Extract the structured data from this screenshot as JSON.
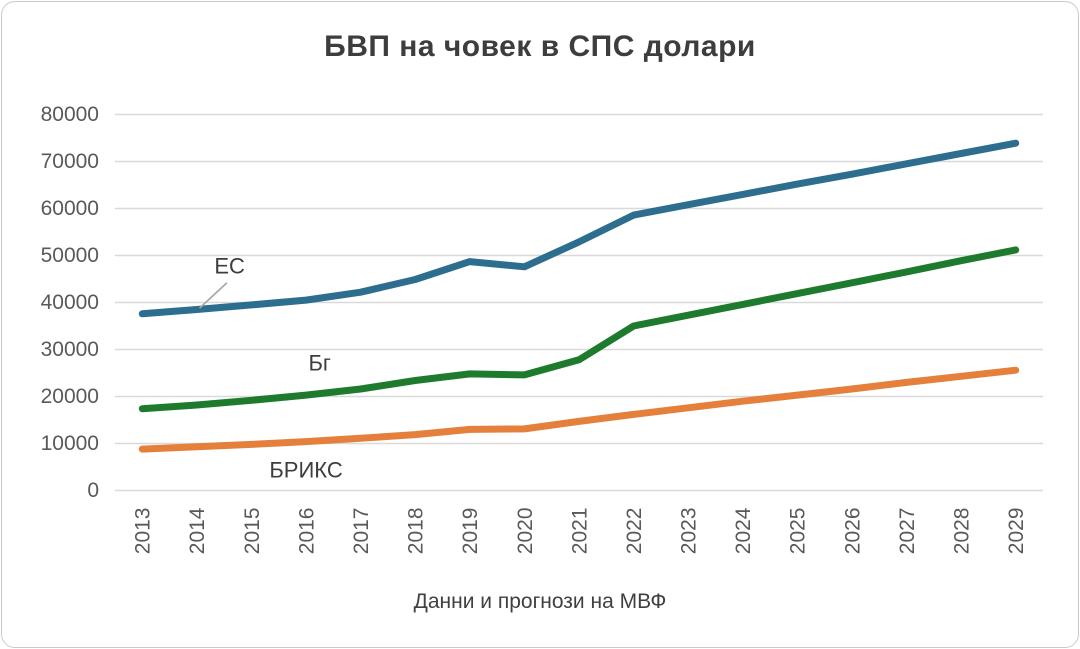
{
  "page": {
    "background": "#ffffff",
    "border_color": "#c9c9c9"
  },
  "chart_data": {
    "type": "line",
    "title": "БВП на човек в СПС долари",
    "xlabel": "Данни и прогнози на МВФ",
    "ylabel": "",
    "categories": [
      "2013",
      "2014",
      "2015",
      "2016",
      "2017",
      "2018",
      "2019",
      "2020",
      "2021",
      "2022",
      "2023",
      "2024",
      "2025",
      "2026",
      "2027",
      "2028",
      "2029"
    ],
    "yticks": [
      0,
      10000,
      20000,
      30000,
      40000,
      50000,
      60000,
      70000,
      80000
    ],
    "ylim": [
      0,
      80000
    ],
    "grid": "horizontal",
    "gridline_color": "#d9d9d9",
    "axis_label_color": "#595959",
    "title_color": "#3d3d3d",
    "legend": "inline-annotations",
    "series": [
      {
        "name": "ЕС",
        "color": "#2d6d8e",
        "values": [
          37600,
          38500,
          39500,
          40500,
          42200,
          44900,
          48700,
          47600,
          52900,
          58600,
          60800,
          63000,
          65200,
          67300,
          69500,
          71700,
          73900
        ]
      },
      {
        "name": "Бг",
        "color": "#1e7b2e",
        "values": [
          17400,
          18200,
          19200,
          20300,
          21600,
          23400,
          24800,
          24600,
          27800,
          35000,
          37300,
          39600,
          41900,
          44200,
          46500,
          48900,
          51200
        ]
      },
      {
        "name": "БРИКС",
        "color": "#e5803c",
        "values": [
          8800,
          9300,
          9800,
          10400,
          11100,
          11900,
          13000,
          13100,
          14700,
          16200,
          17600,
          19000,
          20300,
          21600,
          23000,
          24300,
          25600
        ]
      }
    ],
    "annotations": [
      {
        "text": "ЕС",
        "series": "ЕС",
        "anchor": {
          "year": 2014.6,
          "value": 47800
        },
        "leader": [
          {
            "year": 2014.55,
            "value": 44200
          },
          {
            "year": 2014.05,
            "value": 38800
          }
        ],
        "leader_color": "#a6a6a6"
      },
      {
        "text": "Бг",
        "series": "Бг",
        "anchor": {
          "year": 2016.25,
          "value": 27100
        }
      },
      {
        "text": "БРИКС",
        "series": "БРИКС",
        "anchor": {
          "year": 2016.0,
          "value": 4400
        }
      }
    ]
  }
}
